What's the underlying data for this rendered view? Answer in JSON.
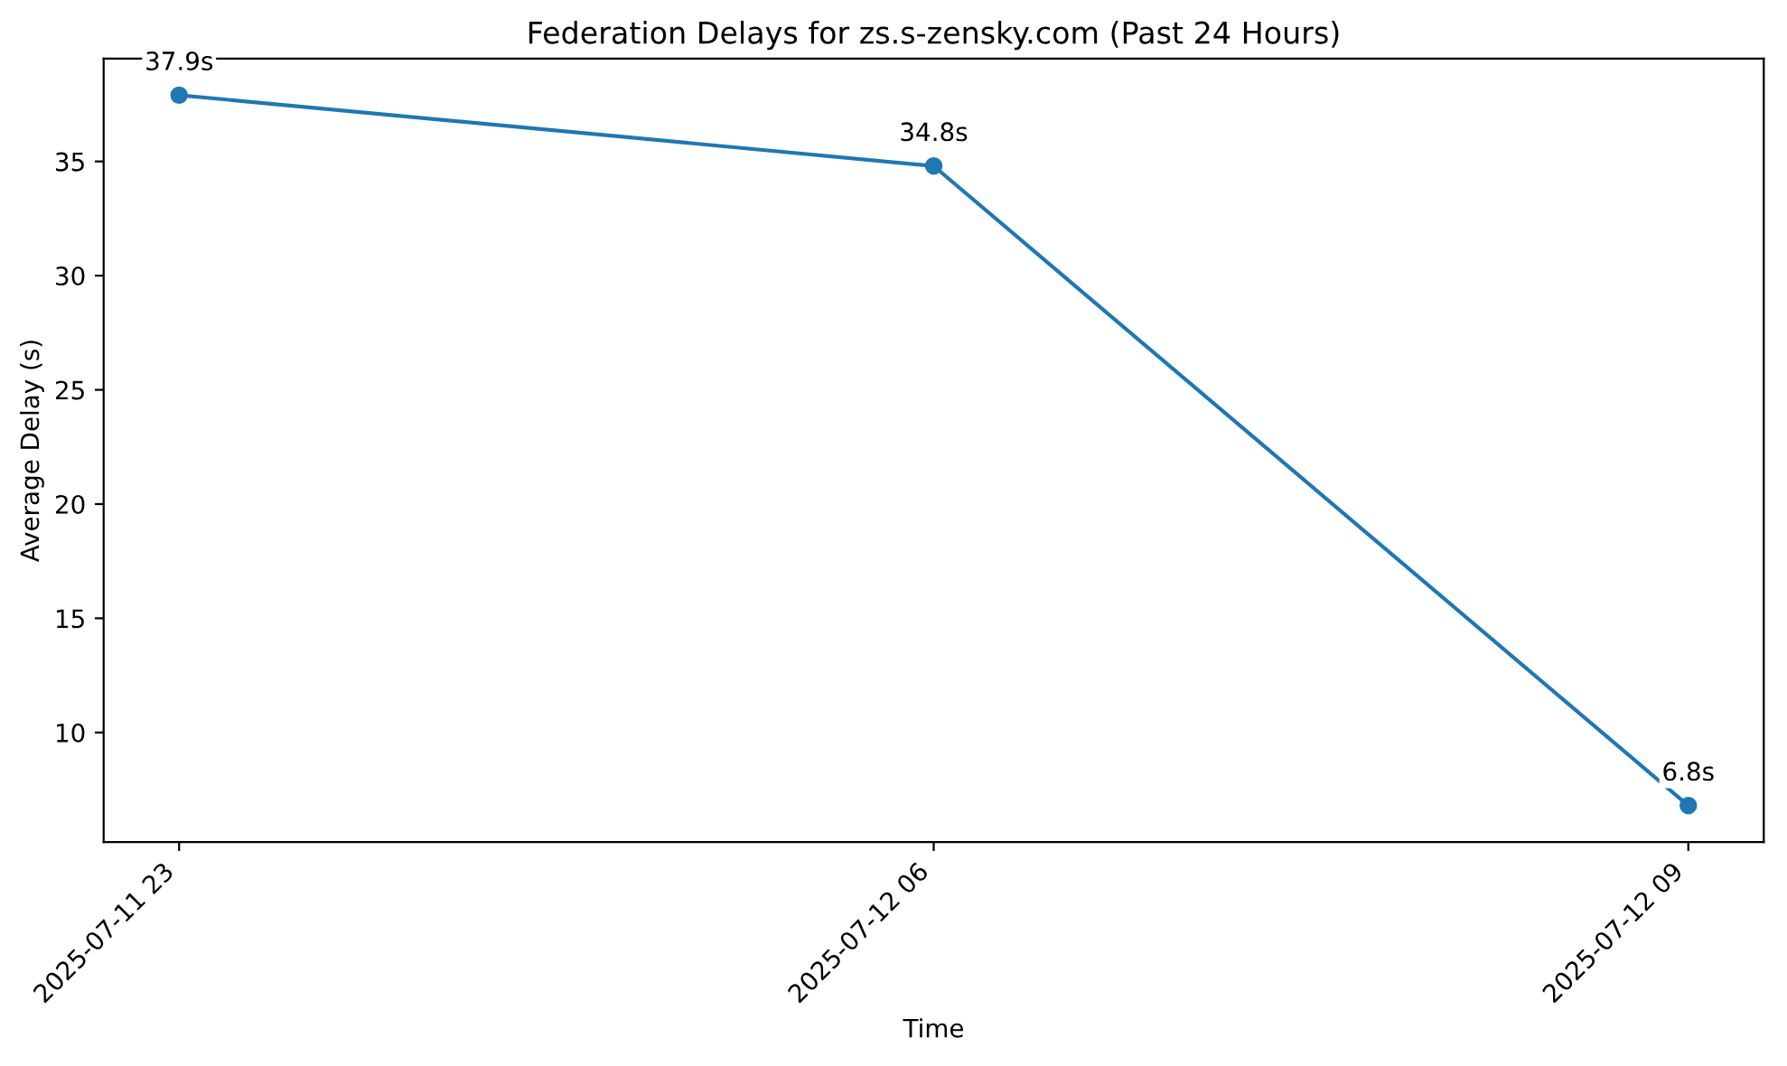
{
  "chart_data": {
    "type": "line",
    "title": "Federation Delays for zs.s-zensky.com (Past 24 Hours)",
    "xlabel": "Time",
    "ylabel": "Average Delay (s)",
    "categories": [
      "2025-07-11 23",
      "2025-07-12 06",
      "2025-07-12 09"
    ],
    "series": [
      {
        "color": "#1f77b4",
        "values": [
          37.9,
          34.8,
          6.8
        ],
        "value_labels": [
          "37.9s",
          "34.8s",
          "6.8s"
        ]
      }
    ],
    "ylim": [
      5.2,
      39.5
    ],
    "yticks": [
      10,
      15,
      20,
      25,
      30,
      35
    ],
    "marker": "circle",
    "line_style": "solid",
    "grid": false,
    "legend": false
  }
}
